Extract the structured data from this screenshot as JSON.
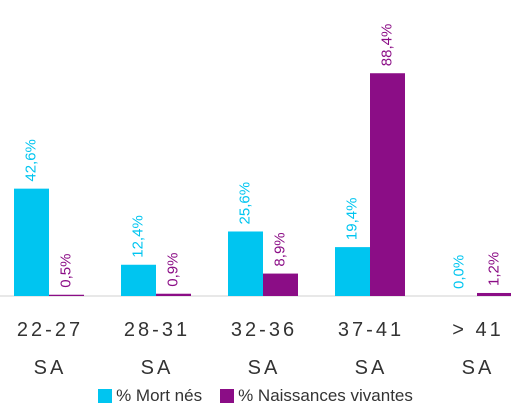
{
  "chart_data": {
    "type": "bar",
    "categories": [
      "22-27 SA",
      "28-31 SA",
      "32-36 SA",
      "37-41 SA",
      "> 41 SA"
    ],
    "series": [
      {
        "name": "% Mort nés",
        "color": "#00c5f0",
        "values": [
          42.6,
          12.4,
          25.6,
          19.4,
          0.0
        ],
        "value_labels": [
          "42,6%",
          "12,4%",
          "25,6%",
          "19,4%",
          "0,0%"
        ]
      },
      {
        "name": "% Naissances vivantes",
        "color": "#8b0d86",
        "values": [
          0.5,
          0.9,
          8.9,
          88.4,
          1.2
        ],
        "value_labels": [
          "0,5%",
          "0,9%",
          "8,9%",
          "88,4%",
          "1,2%"
        ]
      }
    ]
  }
}
